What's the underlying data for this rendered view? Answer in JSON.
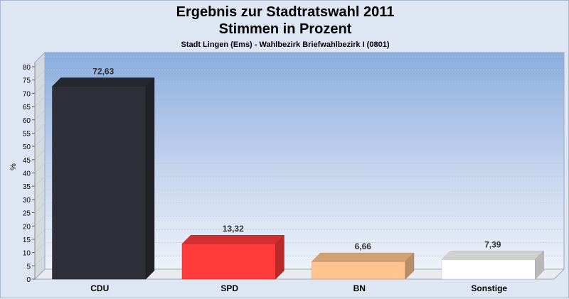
{
  "chart_data": {
    "type": "bar",
    "title": "Ergebnis zur Stadtratswahl 2011",
    "title2": "Stimmen in Prozent",
    "subtitle": "Stadt Lingen (Ems) - Wahlbezirk Briefwahlbezirk I (0801)",
    "ylabel": "%",
    "ylim": [
      0,
      80
    ],
    "ytick_step": 5,
    "categories": [
      "CDU",
      "SPD",
      "BN",
      "Sonstige"
    ],
    "values": [
      72.63,
      13.32,
      6.66,
      7.39
    ],
    "value_labels": [
      "72,63",
      "13,32",
      "6,66",
      "7,39"
    ],
    "colors": [
      "#2e2f38",
      "#ff3b3b",
      "#ffc48f",
      "#ffffff"
    ],
    "grid": true,
    "legend": "none"
  }
}
